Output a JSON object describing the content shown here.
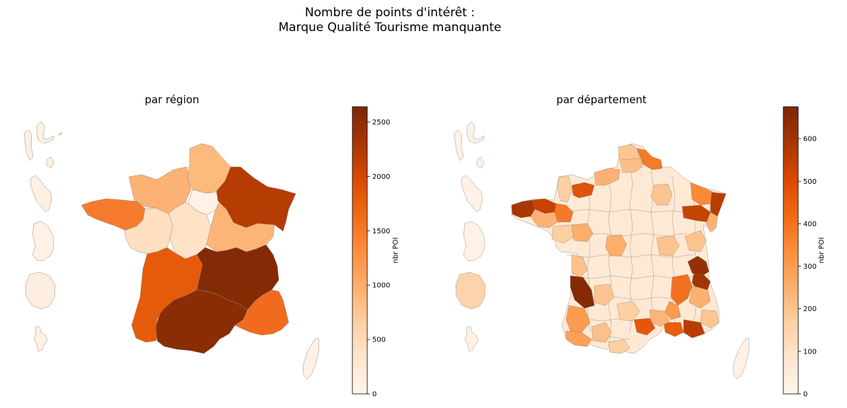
{
  "title": {
    "line1": "Nombre de points d'intérêt :",
    "line2": "Marque Qualité Tourisme manquante"
  },
  "panels": [
    {
      "title": "par région",
      "colorbar": {
        "label": "nbr POI",
        "min": 0,
        "max": 2640,
        "ticks": [
          0,
          500,
          1000,
          1500,
          2000,
          2500
        ],
        "colormap": "Oranges"
      },
      "regions": [
        {
          "name": "Hauts-de-France",
          "value": 500
        },
        {
          "name": "Normandie",
          "value": 600
        },
        {
          "name": "Bretagne",
          "value": 1650
        },
        {
          "name": "Grand Est",
          "value": 2300
        },
        {
          "name": "Île-de-France",
          "value": 120
        },
        {
          "name": "Pays de la Loire",
          "value": 300
        },
        {
          "name": "Centre-Val de Loire",
          "value": 250
        },
        {
          "name": "Bourgogne-Franche-Comté",
          "value": 700
        },
        {
          "name": "Nouvelle-Aquitaine",
          "value": 1950
        },
        {
          "name": "Auvergne-Rhône-Alpes",
          "value": 2640
        },
        {
          "name": "Occitanie",
          "value": 2550
        },
        {
          "name": "Provence-Alpes-Côte d'Azur",
          "value": 1900
        },
        {
          "name": "Corse",
          "value": 60
        },
        {
          "name": "Guadeloupe",
          "value": 80
        },
        {
          "name": "Martinique",
          "value": 60
        },
        {
          "name": "Guyane",
          "value": 40
        },
        {
          "name": "La Réunion",
          "value": 70
        },
        {
          "name": "Mayotte",
          "value": 30
        }
      ]
    },
    {
      "title": "par département",
      "colorbar": {
        "label": "nbr POI",
        "min": 0,
        "max": 675,
        "ticks": [
          0,
          100,
          200,
          300,
          400,
          500,
          600
        ],
        "colormap": "Oranges"
      }
    }
  ]
}
